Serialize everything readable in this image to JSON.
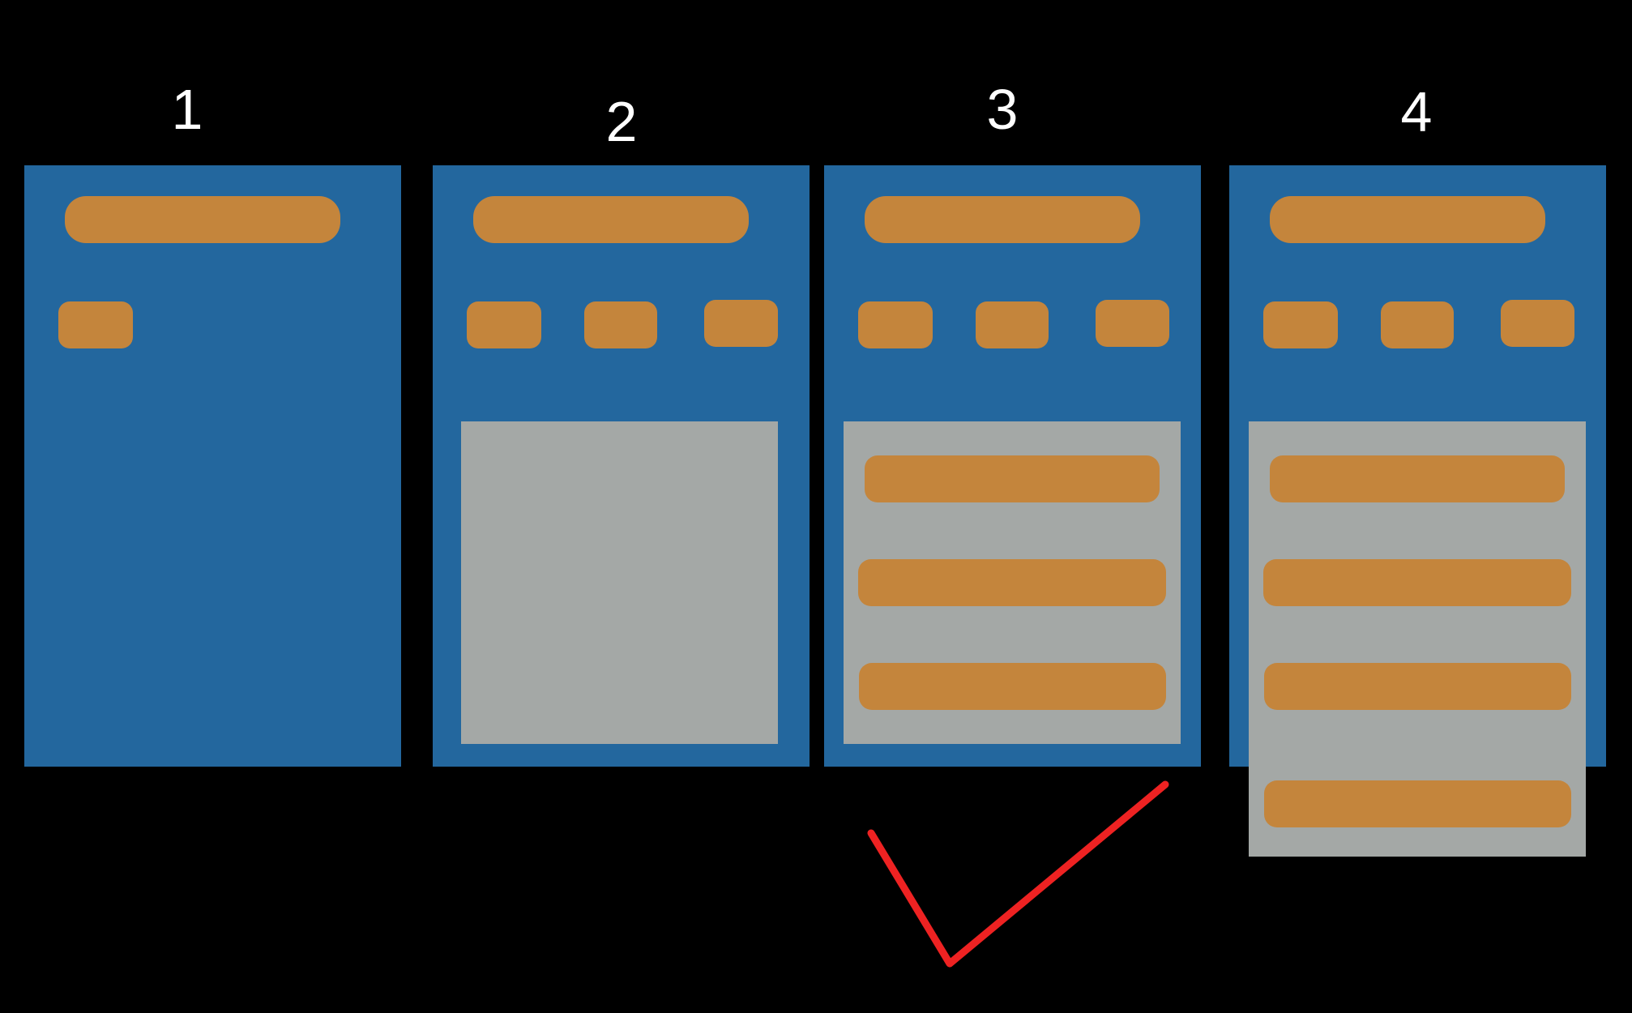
{
  "columns": [
    {
      "label": "1",
      "state": "no-content"
    },
    {
      "label": "2",
      "state": "empty-content"
    },
    {
      "label": "3",
      "state": "content-fits"
    },
    {
      "label": "4",
      "state": "content-overflows"
    }
  ],
  "colors": {
    "background": "#000000",
    "panel": "#23679e",
    "element": "#c4853c",
    "content_area": "#a4a8a6",
    "check": "#ee2222",
    "label": "#ffffff"
  },
  "marks": {
    "checkmark_column": "3"
  }
}
